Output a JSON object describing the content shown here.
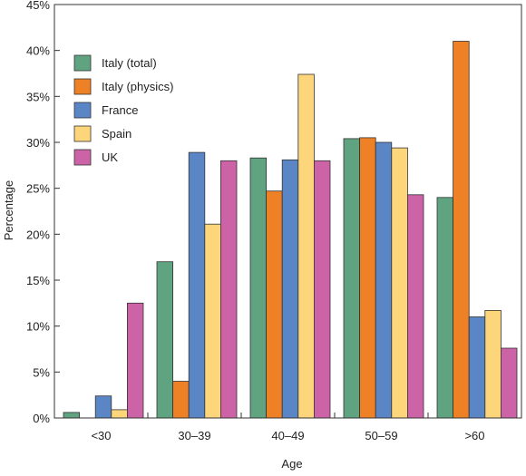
{
  "chart_data": {
    "type": "bar",
    "xlabel": "Age",
    "ylabel": "Percentage",
    "categories": [
      "<30",
      "30–39",
      "40–49",
      "50–59",
      ">60"
    ],
    "ylim": [
      0,
      45
    ],
    "yticks": [
      "0%",
      "5%",
      "10%",
      "15%",
      "20%",
      "25%",
      "30%",
      "35%",
      "40%",
      "45%"
    ],
    "legend_position": "top-left",
    "grid": false,
    "series": [
      {
        "name": "Italy (total)",
        "color": "#5fa381",
        "values": [
          0.6,
          17.0,
          28.3,
          30.4,
          24.0
        ]
      },
      {
        "name": "Italy (physics)",
        "color": "#ee8026",
        "values": [
          0,
          4.0,
          24.7,
          30.5,
          41.0
        ]
      },
      {
        "name": "France",
        "color": "#5b86c6",
        "values": [
          2.4,
          28.9,
          28.1,
          30.0,
          11.0
        ]
      },
      {
        "name": "Spain",
        "color": "#fdd67c",
        "values": [
          0.9,
          21.1,
          37.4,
          29.4,
          11.7
        ]
      },
      {
        "name": "UK",
        "color": "#cc63a7",
        "values": [
          12.5,
          28.0,
          28.0,
          24.3,
          7.6
        ]
      }
    ]
  }
}
